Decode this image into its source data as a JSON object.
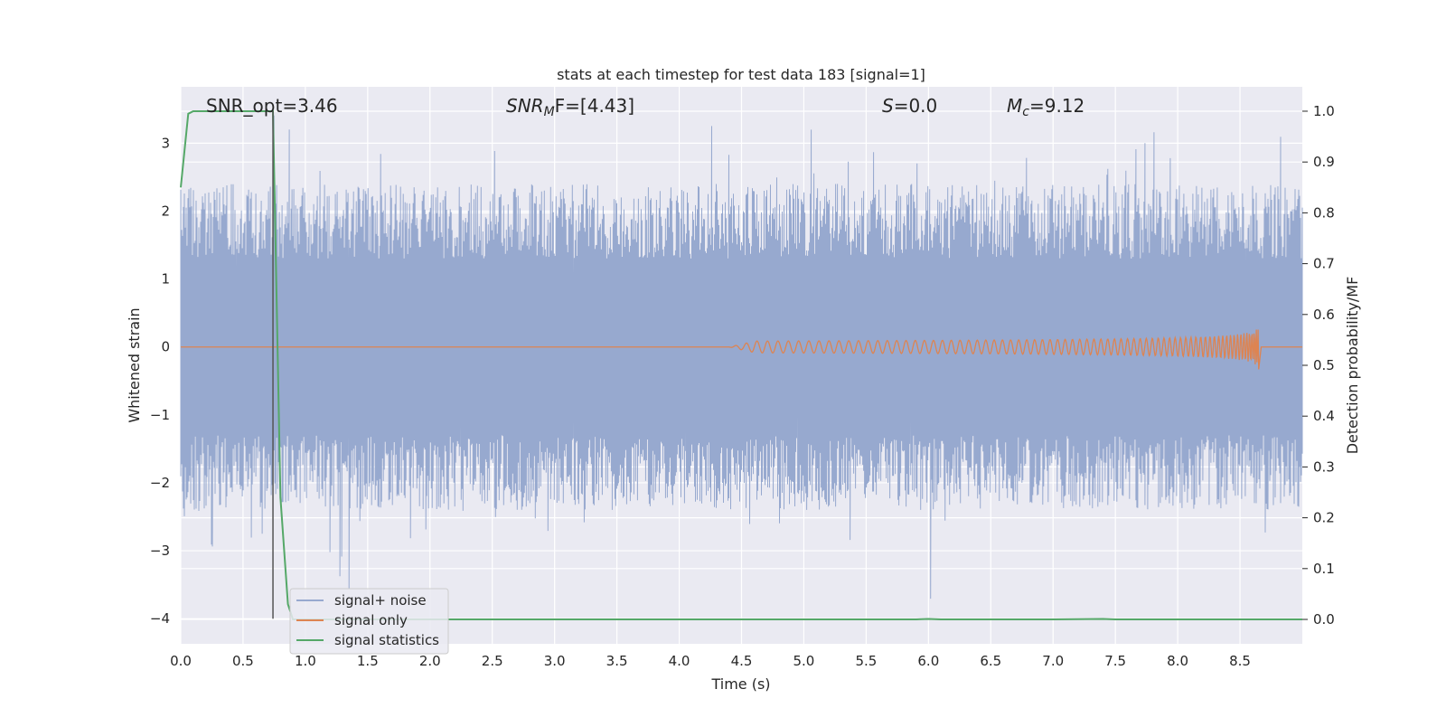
{
  "chart_data": {
    "type": "line",
    "title": "stats at each timestep for test data 183 [signal=1]",
    "xlabel": "Time (s)",
    "ylabel": "Whitened strain",
    "ylabel_right": "Detection probability/MF",
    "xlim": [
      0.0,
      9.0
    ],
    "ylim": [
      -4.37,
      3.83
    ],
    "ylim_right": [
      -0.048,
      1.048
    ],
    "x_ticks": [
      0.0,
      0.5,
      1.0,
      1.5,
      2.0,
      2.5,
      3.0,
      3.5,
      4.0,
      4.5,
      5.0,
      5.5,
      6.0,
      6.5,
      7.0,
      7.5,
      8.0,
      8.5
    ],
    "x_tick_labels": [
      "0.0",
      "0.5",
      "1.0",
      "1.5",
      "2.0",
      "2.5",
      "3.0",
      "3.5",
      "4.0",
      "4.5",
      "5.0",
      "5.5",
      "6.0",
      "6.5",
      "7.0",
      "7.5",
      "8.0",
      "8.5"
    ],
    "y_ticks": [
      3,
      2,
      1,
      0,
      -1,
      -2,
      -3,
      -4
    ],
    "y_tick_labels": [
      "3",
      "2",
      "1",
      "0",
      "−1",
      "−2",
      "−3",
      "−4"
    ],
    "y_ticks_right": [
      1.0,
      0.9,
      0.8,
      0.7,
      0.6,
      0.5,
      0.4,
      0.3,
      0.2,
      0.1,
      0.0
    ],
    "y_tick_labels_right": [
      "1.0",
      "0.9",
      "0.8",
      "0.7",
      "0.6",
      "0.5",
      "0.4",
      "0.3",
      "0.2",
      "0.1",
      "0.0"
    ],
    "annotations": {
      "snr_opt": "SNR_opt=3.46",
      "snr_mf": {
        "main": "SNR",
        "sub": "M",
        "rest": "F=[4.43]"
      },
      "s_stat": {
        "main": "S",
        "rest": "=0.0"
      },
      "mc": {
        "main": "M",
        "sub": "c",
        "rest": "=9.12"
      }
    },
    "vline_x": 0.74,
    "legend_position": "lower-left",
    "grid": true,
    "colors": {
      "background": "#eaeaf2",
      "grid": "#ffffff",
      "noise": "#97a9cf",
      "signal": "#dd8452",
      "stats": "#55a868",
      "vline": "#555555",
      "text": "#262626"
    },
    "series": [
      {
        "name": "signal+ noise",
        "axis": "left",
        "description": "noisy whitened strain, approx ±1.5 envelope with peaks to 3.4 / -4.0",
        "noise_amplitude": 1.1
      },
      {
        "name": "signal only",
        "axis": "left",
        "chirp": {
          "start": 4.4,
          "merger": 8.65,
          "peak_amplitude": 0.33
        }
      },
      {
        "name": "signal statistics",
        "axis": "right",
        "x": [
          0.0,
          0.06,
          0.1,
          0.15,
          0.25,
          0.35,
          0.45,
          0.55,
          0.65,
          0.72,
          0.74,
          0.76,
          0.8,
          0.86,
          0.9,
          1.0,
          2.0,
          3.0,
          4.0,
          5.0,
          5.9,
          6.0,
          6.1,
          7.0,
          7.4,
          7.5,
          8.0,
          9.0
        ],
        "values": [
          0.85,
          0.995,
          1.0,
          1.0,
          1.0,
          1.0,
          1.0,
          1.0,
          1.0,
          1.0,
          1.0,
          0.75,
          0.24,
          0.03,
          0.0,
          0.0,
          0.0,
          0.0,
          0.0,
          0.0,
          0.0,
          0.001,
          0.0,
          0.0,
          0.001,
          0.0,
          0.0,
          0.0
        ]
      }
    ]
  }
}
